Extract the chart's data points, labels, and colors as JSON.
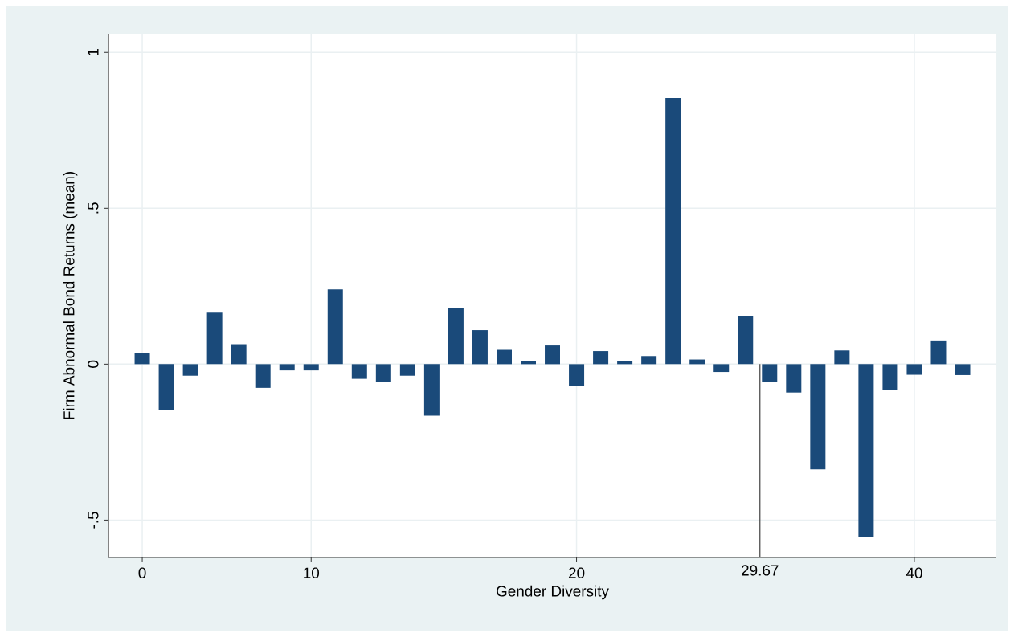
{
  "chart_data": {
    "type": "bar",
    "xlabel": "Gender Diversity",
    "ylabel": "Firm Abnormal Bond Returns (mean)",
    "categories": [
      "0",
      null,
      null,
      null,
      null,
      null,
      null,
      "10",
      null,
      null,
      null,
      null,
      null,
      null,
      null,
      null,
      null,
      null,
      "20",
      null,
      null,
      null,
      null,
      null,
      null,
      null,
      null,
      null,
      null,
      null,
      null,
      null,
      "40",
      null,
      null
    ],
    "values": [
      0.037,
      -0.148,
      -0.037,
      0.165,
      0.064,
      -0.076,
      -0.02,
      -0.02,
      0.24,
      -0.047,
      -0.057,
      -0.037,
      -0.165,
      0.18,
      0.109,
      0.046,
      0.01,
      0.06,
      -0.071,
      0.042,
      0.01,
      0.026,
      0.854,
      0.015,
      -0.025,
      0.154,
      -0.056,
      -0.091,
      -0.337,
      0.044,
      -0.554,
      -0.084,
      -0.034,
      0.076,
      -0.035
    ],
    "color": "#1a4a7a",
    "ylim": [
      -0.62,
      1.06
    ],
    "yticks": [
      {
        "value": -0.5,
        "label": "-.5"
      },
      {
        "value": 0,
        "label": "0"
      },
      {
        "value": 0.5,
        "label": ".5"
      },
      {
        "value": 1,
        "label": "1"
      }
    ],
    "annotations": [
      {
        "text": "29.67",
        "y": 0
      }
    ],
    "grid": true
  }
}
